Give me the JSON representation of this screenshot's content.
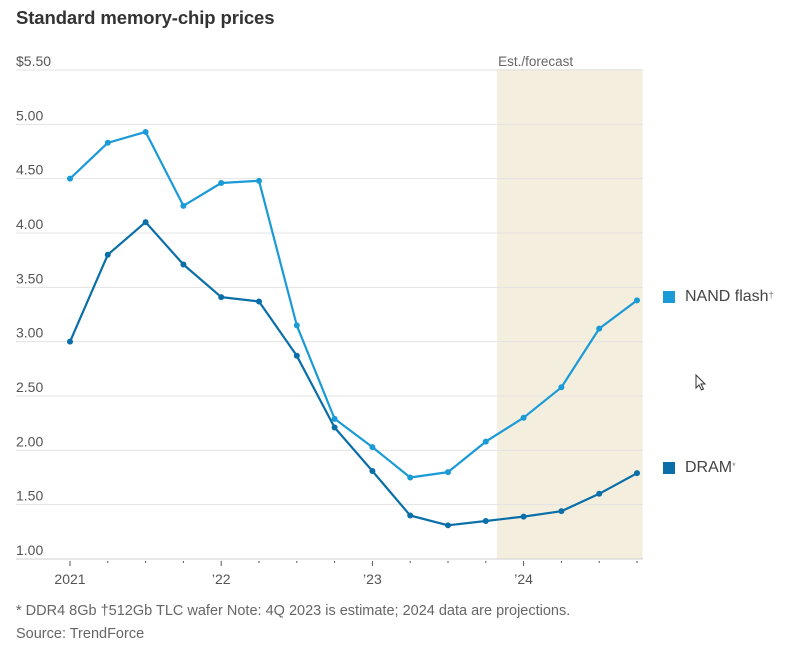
{
  "title": "Standard memory-chip prices",
  "footnote": "* DDR4 8Gb †512Gb TLC wafer Note: 4Q 2023 is estimate; 2024 data are projections.",
  "source": "Source: TrendForce",
  "colors": {
    "nand": "#1a9ad6",
    "dram": "#0a6fa8",
    "forecast_band": "#f4eedf",
    "grid": "#e3e3e3",
    "axis_text": "#555555"
  },
  "legend": [
    {
      "name": "NAND flash",
      "marker": "†",
      "color_key": "nand"
    },
    {
      "name": "DRAM",
      "marker": "*",
      "color_key": "dram"
    }
  ],
  "chart_data": {
    "type": "line",
    "title": "Standard memory-chip prices",
    "xlabel": "",
    "ylabel": "",
    "ylim": [
      1.0,
      5.5
    ],
    "yticks": [
      1.0,
      1.5,
      2.0,
      2.5,
      3.0,
      3.5,
      4.0,
      4.5,
      5.0,
      5.5
    ],
    "ytick_labels": [
      "1.00",
      "1.50",
      "2.00",
      "2.50",
      "3.00",
      "3.50",
      "4.00",
      "4.50",
      "5.00",
      "$5.50"
    ],
    "x": [
      "1Q 2021",
      "2Q 2021",
      "3Q 2021",
      "4Q 2021",
      "1Q 2022",
      "2Q 2022",
      "3Q 2022",
      "4Q 2022",
      "1Q 2023",
      "2Q 2023",
      "3Q 2023",
      "4Q 2023",
      "1Q 2024",
      "2Q 2024",
      "3Q 2024",
      "4Q 2024"
    ],
    "xtick_labels": [
      {
        "index": 0,
        "label": "2021"
      },
      {
        "index": 4,
        "label": "’22"
      },
      {
        "index": 8,
        "label": "’23"
      },
      {
        "index": 12,
        "label": "’24"
      }
    ],
    "grid": true,
    "legend_position": "right",
    "annotation": {
      "label": "Est./forecast",
      "from_index": 11.3,
      "to_index": 15.15
    },
    "series": [
      {
        "name": "NAND flash",
        "values": [
          4.5,
          4.83,
          4.93,
          4.25,
          4.46,
          4.48,
          3.15,
          2.29,
          2.03,
          1.75,
          1.8,
          2.08,
          2.3,
          2.58,
          3.12,
          3.38
        ]
      },
      {
        "name": "DRAM",
        "values": [
          3.0,
          3.8,
          4.1,
          3.71,
          3.41,
          3.37,
          2.87,
          2.21,
          1.81,
          1.4,
          1.31,
          1.35,
          1.39,
          1.44,
          1.6,
          1.79
        ]
      }
    ]
  }
}
